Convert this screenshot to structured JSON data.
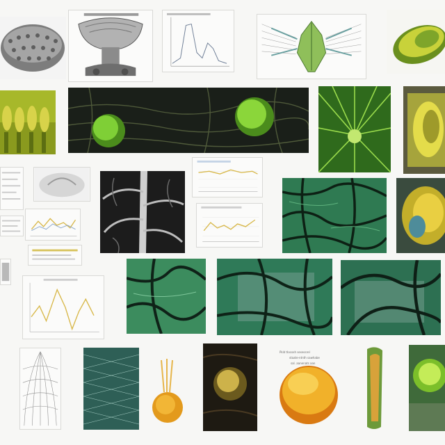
{
  "colors": {
    "background": "#f7f7f5",
    "leaf_green": "#7fd12b",
    "dark_green": "#1d3b22",
    "teal": "#2f8a6a",
    "yellow": "#e3c53a",
    "orange": "#e39a1c"
  },
  "caption": {
    "line1": "Pkld tlocosh sesessrel",
    "line2": "staate-ntnth sawhabe",
    "line3": "sal. aanenats aan"
  }
}
